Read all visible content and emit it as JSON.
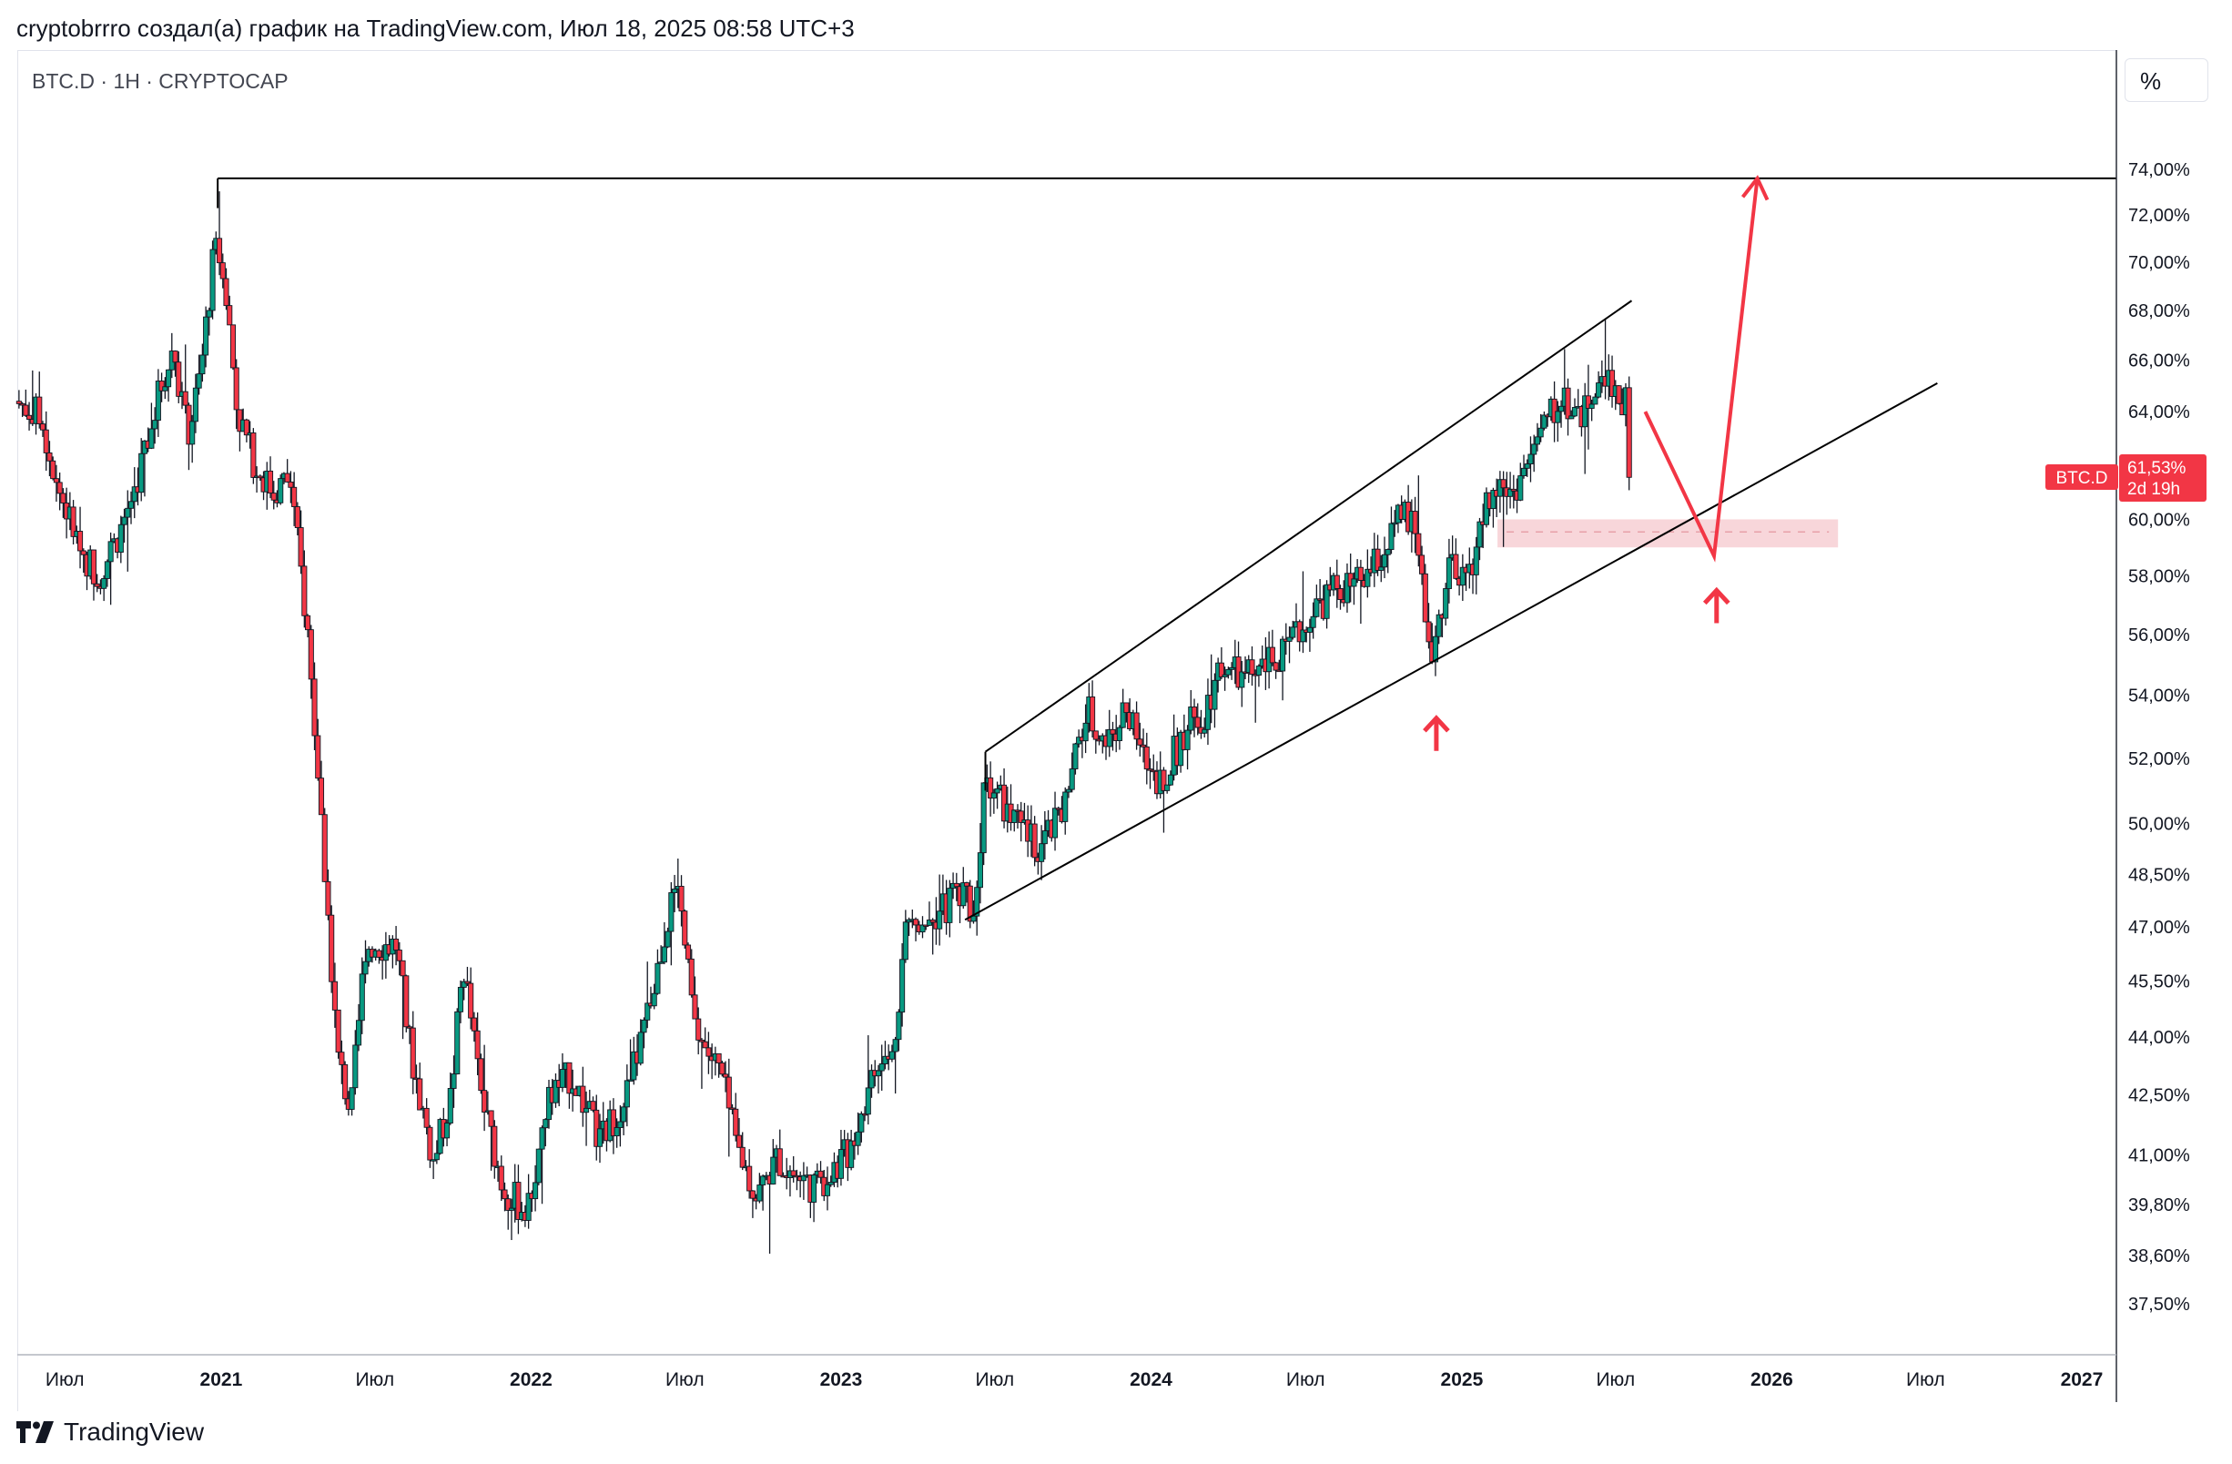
{
  "header": {
    "caption": "cryptobrrro создал(а) график на TradingView.com, Июл 18, 2025 08:58 UTC+3"
  },
  "chart": {
    "symbol_line": "BTC.D · 1H · CRYPTOCAP",
    "scale_button": "%",
    "price_tag": {
      "label": "BTC.D",
      "value": "61,53%",
      "countdown": "2d 19h",
      "color": "#f23645"
    }
  },
  "footer": {
    "brand": "TradingView"
  },
  "colors": {
    "up_candle": "#089981",
    "down_candle": "#f23645",
    "annotation": "#f23645",
    "zone_fill": "#f7cfd4",
    "trendline": "#000000",
    "grid_line": "#e0e3eb"
  },
  "chart_data": {
    "type": "candlestick",
    "title": "",
    "symbol": "BTC.D",
    "interval": "1H",
    "exchange": "CRYPTOCAP",
    "y_unit": "%",
    "y_scale": "log",
    "ylim": [
      37.0,
      76.0
    ],
    "xlim": [
      "2020-05-06",
      "2027-01-15"
    ],
    "grid": false,
    "y_ticks": [
      {
        "value": 74.0,
        "label": "74,00%"
      },
      {
        "value": 72.0,
        "label": "72,00%"
      },
      {
        "value": 70.0,
        "label": "70,00%"
      },
      {
        "value": 68.0,
        "label": "68,00%"
      },
      {
        "value": 66.0,
        "label": "66,00%"
      },
      {
        "value": 64.0,
        "label": "64,00%"
      },
      {
        "value": 62.0,
        "label": "62,00%"
      },
      {
        "value": 60.0,
        "label": "60,00%"
      },
      {
        "value": 58.0,
        "label": "58,00%"
      },
      {
        "value": 56.0,
        "label": "56,00%"
      },
      {
        "value": 54.0,
        "label": "54,00%"
      },
      {
        "value": 52.0,
        "label": "52,00%"
      },
      {
        "value": 50.0,
        "label": "50,00%"
      },
      {
        "value": 48.5,
        "label": "48,50%"
      },
      {
        "value": 47.0,
        "label": "47,00%"
      },
      {
        "value": 45.5,
        "label": "45,50%"
      },
      {
        "value": 44.0,
        "label": "44,00%"
      },
      {
        "value": 42.5,
        "label": "42,50%"
      },
      {
        "value": 41.0,
        "label": "41,00%"
      },
      {
        "value": 39.8,
        "label": "39,80%"
      },
      {
        "value": 38.6,
        "label": "38,60%"
      },
      {
        "value": 37.5,
        "label": "37,50%"
      }
    ],
    "x_ticks": [
      {
        "date": "2020-07-01",
        "label": "Июл",
        "bold": false
      },
      {
        "date": "2021-01-01",
        "label": "2021",
        "bold": true
      },
      {
        "date": "2021-07-01",
        "label": "Июл",
        "bold": false
      },
      {
        "date": "2022-01-01",
        "label": "2022",
        "bold": true
      },
      {
        "date": "2022-07-01",
        "label": "Июл",
        "bold": false
      },
      {
        "date": "2023-01-01",
        "label": "2023",
        "bold": true
      },
      {
        "date": "2023-07-01",
        "label": "Июл",
        "bold": false
      },
      {
        "date": "2024-01-01",
        "label": "2024",
        "bold": true
      },
      {
        "date": "2024-07-01",
        "label": "Июл",
        "bold": false
      },
      {
        "date": "2025-01-01",
        "label": "2025",
        "bold": true
      },
      {
        "date": "2025-07-01",
        "label": "Июл",
        "bold": false
      },
      {
        "date": "2026-01-01",
        "label": "2026",
        "bold": true
      },
      {
        "date": "2026-07-01",
        "label": "Июл",
        "bold": false
      },
      {
        "date": "2027-01-01",
        "label": "2027",
        "bold": true
      }
    ],
    "price_path": [
      {
        "date": "2020-05-06",
        "value": 64.4
      },
      {
        "date": "2020-06-05",
        "value": 63.8
      },
      {
        "date": "2020-06-25",
        "value": 61.2
      },
      {
        "date": "2020-07-20",
        "value": 59.0
      },
      {
        "date": "2020-08-12",
        "value": 58.0
      },
      {
        "date": "2020-09-05",
        "value": 59.5
      },
      {
        "date": "2020-09-25",
        "value": 61.3
      },
      {
        "date": "2020-10-20",
        "value": 64.5
      },
      {
        "date": "2020-11-08",
        "value": 66.5
      },
      {
        "date": "2020-11-25",
        "value": 63.0
      },
      {
        "date": "2020-12-10",
        "value": 65.5
      },
      {
        "date": "2020-12-26",
        "value": 70.5
      },
      {
        "date": "2021-01-05",
        "value": 70.0
      },
      {
        "date": "2021-01-22",
        "value": 64.0
      },
      {
        "date": "2021-02-12",
        "value": 62.0
      },
      {
        "date": "2021-03-05",
        "value": 61.0
      },
      {
        "date": "2021-03-25",
        "value": 61.5
      },
      {
        "date": "2021-04-15",
        "value": 56.0
      },
      {
        "date": "2021-05-01",
        "value": 50.0
      },
      {
        "date": "2021-05-20",
        "value": 43.5
      },
      {
        "date": "2021-06-05",
        "value": 42.0
      },
      {
        "date": "2021-06-22",
        "value": 46.5
      },
      {
        "date": "2021-07-10",
        "value": 46.5
      },
      {
        "date": "2021-07-28",
        "value": 46.5
      },
      {
        "date": "2021-08-15",
        "value": 43.5
      },
      {
        "date": "2021-09-10",
        "value": 40.8
      },
      {
        "date": "2021-10-01",
        "value": 42.5
      },
      {
        "date": "2021-10-15",
        "value": 46.0
      },
      {
        "date": "2021-11-05",
        "value": 42.5
      },
      {
        "date": "2021-12-01",
        "value": 40.2
      },
      {
        "date": "2021-12-30",
        "value": 39.6
      },
      {
        "date": "2022-01-25",
        "value": 42.5
      },
      {
        "date": "2022-02-20",
        "value": 43.0
      },
      {
        "date": "2022-03-25",
        "value": 41.3
      },
      {
        "date": "2022-04-25",
        "value": 42.5
      },
      {
        "date": "2022-05-20",
        "value": 44.5
      },
      {
        "date": "2022-06-15",
        "value": 47.5
      },
      {
        "date": "2022-06-25",
        "value": 48.0
      },
      {
        "date": "2022-07-15",
        "value": 44.2
      },
      {
        "date": "2022-08-15",
        "value": 43.0
      },
      {
        "date": "2022-09-01",
        "value": 41.3
      },
      {
        "date": "2022-09-25",
        "value": 40.0
      },
      {
        "date": "2022-10-20",
        "value": 40.9
      },
      {
        "date": "2022-11-10",
        "value": 40.5
      },
      {
        "date": "2022-12-05",
        "value": 40.2
      },
      {
        "date": "2023-01-10",
        "value": 41.0
      },
      {
        "date": "2023-02-10",
        "value": 43.0
      },
      {
        "date": "2023-03-05",
        "value": 43.5
      },
      {
        "date": "2023-03-20",
        "value": 47.0
      },
      {
        "date": "2023-04-10",
        "value": 47.3
      },
      {
        "date": "2023-05-05",
        "value": 47.5
      },
      {
        "date": "2023-05-25",
        "value": 48.2
      },
      {
        "date": "2023-06-10",
        "value": 47.3
      },
      {
        "date": "2023-06-21",
        "value": 51.5
      },
      {
        "date": "2023-07-05",
        "value": 51.0
      },
      {
        "date": "2023-07-25",
        "value": 50.0
      },
      {
        "date": "2023-08-25",
        "value": 49.3
      },
      {
        "date": "2023-09-20",
        "value": 50.2
      },
      {
        "date": "2023-10-20",
        "value": 53.5
      },
      {
        "date": "2023-11-10",
        "value": 52.5
      },
      {
        "date": "2023-12-05",
        "value": 53.5
      },
      {
        "date": "2023-12-25",
        "value": 52.0
      },
      {
        "date": "2024-01-15",
        "value": 51.3
      },
      {
        "date": "2024-02-15",
        "value": 53.0
      },
      {
        "date": "2024-03-05",
        "value": 53.4
      },
      {
        "date": "2024-03-25",
        "value": 55.0
      },
      {
        "date": "2024-04-20",
        "value": 54.5
      },
      {
        "date": "2024-05-20",
        "value": 55.0
      },
      {
        "date": "2024-06-10",
        "value": 55.3
      },
      {
        "date": "2024-07-05",
        "value": 56.6
      },
      {
        "date": "2024-08-05",
        "value": 57.5
      },
      {
        "date": "2024-09-05",
        "value": 57.7
      },
      {
        "date": "2024-10-01",
        "value": 58.7
      },
      {
        "date": "2024-10-25",
        "value": 60.2
      },
      {
        "date": "2024-11-10",
        "value": 59.5
      },
      {
        "date": "2024-11-25",
        "value": 55.5
      },
      {
        "date": "2024-12-05",
        "value": 56.0
      },
      {
        "date": "2024-12-18",
        "value": 58.5
      },
      {
        "date": "2025-01-01",
        "value": 57.5
      },
      {
        "date": "2025-01-15",
        "value": 58.5
      },
      {
        "date": "2025-02-01",
        "value": 60.5
      },
      {
        "date": "2025-02-15",
        "value": 61.2
      },
      {
        "date": "2025-03-05",
        "value": 61.0
      },
      {
        "date": "2025-03-25",
        "value": 62.3
      },
      {
        "date": "2025-04-15",
        "value": 63.8
      },
      {
        "date": "2025-05-05",
        "value": 64.5
      },
      {
        "date": "2025-05-20",
        "value": 63.8
      },
      {
        "date": "2025-06-05",
        "value": 64.5
      },
      {
        "date": "2025-06-25",
        "value": 65.5
      },
      {
        "date": "2025-07-08",
        "value": 64.5
      },
      {
        "date": "2025-07-15",
        "value": 64.3
      },
      {
        "date": "2025-07-18",
        "value": 61.53
      }
    ],
    "drawings": {
      "horizontal_line": {
        "start": "2020-12-28",
        "value": 73.6
      },
      "channel_upper": {
        "from": {
          "date": "2023-06-20",
          "value": 52.2
        },
        "to": {
          "date": "2025-07-20",
          "value": 68.4
        }
      },
      "channel_lower": {
        "from": {
          "date": "2023-05-27",
          "value": 47.2
        },
        "to": {
          "date": "2026-07-15",
          "value": 65.1
        }
      },
      "support_zone": {
        "from": "2025-02-12",
        "to": "2026-03-20",
        "low": 59.0,
        "high": 60.0
      },
      "zone_midline": 59.55,
      "projection": [
        {
          "date": "2025-08-05",
          "value": 64.0
        },
        {
          "date": "2025-10-25",
          "value": 58.7
        },
        {
          "date": "2025-12-15",
          "value": 73.6
        }
      ],
      "up_arrows": [
        {
          "date": "2024-12-02",
          "value": 52.8
        },
        {
          "date": "2025-10-28",
          "value": 57.0
        }
      ]
    }
  }
}
